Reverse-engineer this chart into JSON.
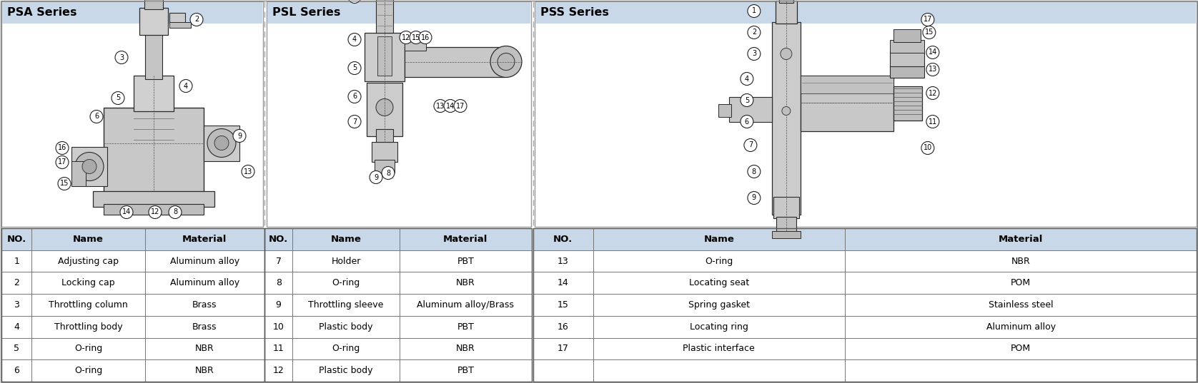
{
  "title_psa": "PSA Series",
  "title_psl": "PSL Series",
  "title_pss": "PSS Series",
  "title_bg_color": "#c8d8e8",
  "table_header_bg": "#c8d8e8",
  "overall_bg": "#ffffff",
  "fig_width": 16.76,
  "fig_height": 5.37,
  "panel_border_color": "#aaaaaa",
  "divider_color": "#888888",
  "body_color": "#d5d5d5",
  "body_dark": "#c0c0c0",
  "body_mid": "#c8c8c8",
  "edge_color": "#2a2a2a",
  "table_data": [
    {
      "no": "NO.",
      "name": "Name",
      "material": "Material",
      "is_header": true
    },
    {
      "no": "1",
      "name": "Adjusting cap",
      "material": "Aluminum alloy"
    },
    {
      "no": "2",
      "name": "Locking cap",
      "material": "Aluminum alloy"
    },
    {
      "no": "3",
      "name": "Throttling column",
      "material": "Brass"
    },
    {
      "no": "4",
      "name": "Throttling body",
      "material": "Brass"
    },
    {
      "no": "5",
      "name": "O-ring",
      "material": "NBR"
    },
    {
      "no": "6",
      "name": "O-ring",
      "material": "NBR"
    }
  ],
  "table_data2": [
    {
      "no": "NO.",
      "name": "Name",
      "material": "Material",
      "is_header": true
    },
    {
      "no": "7",
      "name": "Holder",
      "material": "PBT"
    },
    {
      "no": "8",
      "name": "O-ring",
      "material": "NBR"
    },
    {
      "no": "9",
      "name": "Throttling sleeve",
      "material": "Aluminum alloy/Brass"
    },
    {
      "no": "10",
      "name": "Plastic body",
      "material": "PBT"
    },
    {
      "no": "11",
      "name": "O-ring",
      "material": "NBR"
    },
    {
      "no": "12",
      "name": "Plastic body",
      "material": "PBT"
    }
  ],
  "table_data3": [
    {
      "no": "NO.",
      "name": "Name",
      "material": "Material",
      "is_header": true
    },
    {
      "no": "13",
      "name": "O-ring",
      "material": "NBR"
    },
    {
      "no": "14",
      "name": "Locating seat",
      "material": "POM"
    },
    {
      "no": "15",
      "name": "Spring gasket",
      "material": "Stainless steel"
    },
    {
      "no": "16",
      "name": "Locating ring",
      "material": "Aluminum alloy"
    },
    {
      "no": "17",
      "name": "Plastic interface",
      "material": "POM"
    },
    {
      "no": "",
      "name": "",
      "material": ""
    }
  ]
}
